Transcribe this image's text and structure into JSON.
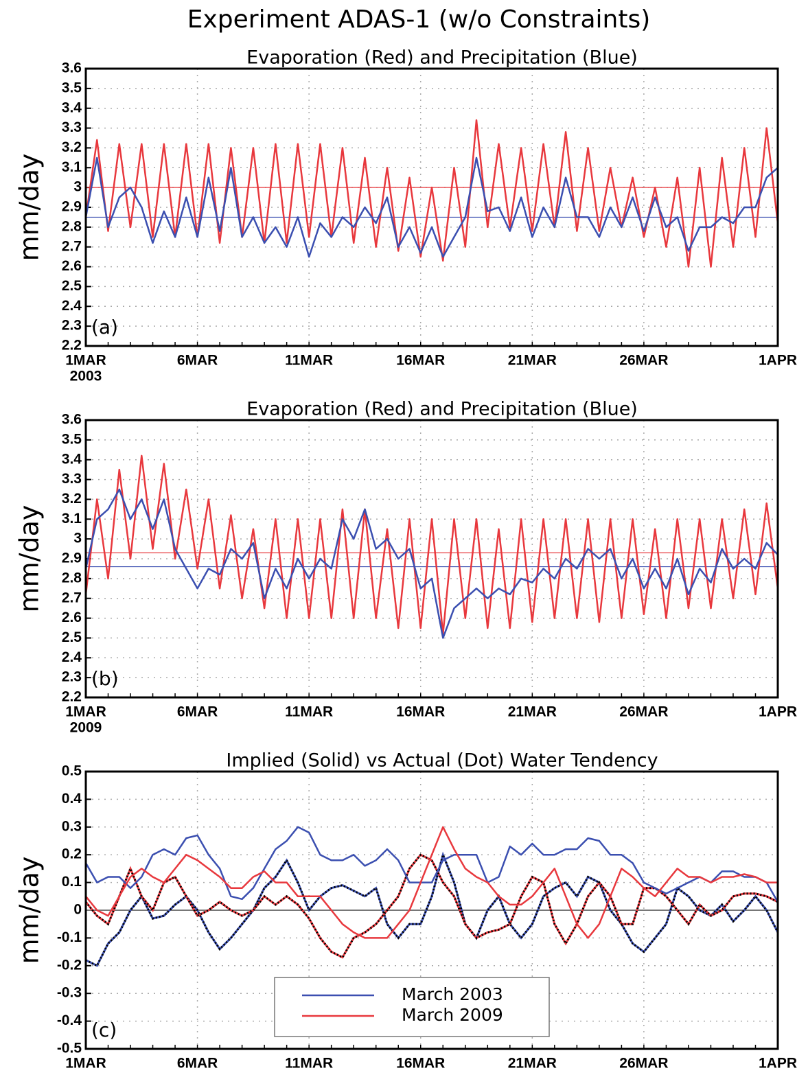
{
  "title": "Experiment ADAS-1 (w/o Constraints)",
  "chart_data": [
    {
      "type": "line",
      "title": "Evaporation (Red) and Precipitation (Blue)",
      "ylabel": "mm/day",
      "panel_label": "(a)",
      "year_label": "2003",
      "x": [
        0,
        0.5,
        1,
        1.5,
        2,
        2.5,
        3,
        3.5,
        4,
        4.5,
        5,
        5.5,
        6,
        6.5,
        7,
        7.5,
        8,
        8.5,
        9,
        9.5,
        10,
        10.5,
        11,
        11.5,
        12,
        12.5,
        13,
        13.5,
        14,
        14.5,
        15,
        15.5,
        16,
        16.5,
        17,
        17.5,
        18,
        18.5,
        19,
        19.5,
        20,
        20.5,
        21,
        21.5,
        22,
        22.5,
        23,
        23.5,
        24,
        24.5,
        25,
        25.5,
        26,
        26.5,
        27,
        27.5,
        28,
        28.5,
        29,
        29.5,
        30,
        30.5,
        31
      ],
      "xlim": [
        0,
        31
      ],
      "xticks": [
        {
          "value": 0,
          "label": "1MAR"
        },
        {
          "value": 5,
          "label": "6MAR"
        },
        {
          "value": 10,
          "label": "11MAR"
        },
        {
          "value": 15,
          "label": "16MAR"
        },
        {
          "value": 20,
          "label": "21MAR"
        },
        {
          "value": 25,
          "label": "26MAR"
        },
        {
          "value": 31,
          "label": "1APR"
        }
      ],
      "ylim": [
        2.2,
        3.6
      ],
      "yticks": [
        2.2,
        2.3,
        2.4,
        2.5,
        2.6,
        2.7,
        2.8,
        2.9,
        3,
        3.1,
        3.2,
        3.3,
        3.4,
        3.5,
        3.6
      ],
      "grid": true,
      "series": [
        {
          "color": "#e8383d",
          "reference": 3.0,
          "values": [
            2.85,
            3.24,
            2.78,
            3.22,
            2.8,
            3.22,
            2.75,
            3.22,
            2.75,
            3.22,
            2.75,
            3.22,
            2.72,
            3.2,
            2.75,
            3.2,
            2.72,
            3.22,
            2.72,
            3.22,
            2.75,
            3.22,
            2.75,
            3.2,
            2.72,
            3.15,
            2.7,
            3.1,
            2.68,
            3.05,
            2.65,
            3.0,
            2.63,
            3.1,
            2.7,
            3.34,
            2.8,
            3.22,
            2.8,
            3.2,
            2.78,
            3.22,
            2.8,
            3.28,
            2.78,
            3.2,
            2.78,
            3.1,
            2.8,
            3.05,
            2.75,
            3.0,
            2.7,
            3.05,
            2.6,
            3.1,
            2.6,
            3.15,
            2.7,
            3.2,
            2.75,
            3.3,
            2.82
          ]
        },
        {
          "color": "#3b4fb0",
          "reference": 2.85,
          "values": [
            2.85,
            3.15,
            2.8,
            2.95,
            3.0,
            2.9,
            2.72,
            2.88,
            2.75,
            2.95,
            2.75,
            3.05,
            2.78,
            3.1,
            2.75,
            2.85,
            2.72,
            2.8,
            2.7,
            2.85,
            2.65,
            2.82,
            2.75,
            2.85,
            2.8,
            2.9,
            2.82,
            2.95,
            2.7,
            2.8,
            2.67,
            2.8,
            2.65,
            2.75,
            2.85,
            3.15,
            2.88,
            2.9,
            2.78,
            2.95,
            2.75,
            2.9,
            2.8,
            3.05,
            2.85,
            2.85,
            2.75,
            2.9,
            2.8,
            2.95,
            2.78,
            2.95,
            2.8,
            2.85,
            2.68,
            2.8,
            2.8,
            2.85,
            2.82,
            2.9,
            2.9,
            3.05,
            3.1
          ]
        }
      ]
    },
    {
      "type": "line",
      "title": "Evaporation (Red) and Precipitation (Blue)",
      "ylabel": "mm/day",
      "panel_label": "(b)",
      "year_label": "2009",
      "x": [
        0,
        0.5,
        1,
        1.5,
        2,
        2.5,
        3,
        3.5,
        4,
        4.5,
        5,
        5.5,
        6,
        6.5,
        7,
        7.5,
        8,
        8.5,
        9,
        9.5,
        10,
        10.5,
        11,
        11.5,
        12,
        12.5,
        13,
        13.5,
        14,
        14.5,
        15,
        15.5,
        16,
        16.5,
        17,
        17.5,
        18,
        18.5,
        19,
        19.5,
        20,
        20.5,
        21,
        21.5,
        22,
        22.5,
        23,
        23.5,
        24,
        24.5,
        25,
        25.5,
        26,
        26.5,
        27,
        27.5,
        28,
        28.5,
        29,
        29.5,
        30,
        30.5,
        31
      ],
      "xlim": [
        0,
        31
      ],
      "xticks": [
        {
          "value": 0,
          "label": "1MAR"
        },
        {
          "value": 5,
          "label": "6MAR"
        },
        {
          "value": 10,
          "label": "11MAR"
        },
        {
          "value": 15,
          "label": "16MAR"
        },
        {
          "value": 20,
          "label": "21MAR"
        },
        {
          "value": 25,
          "label": "26MAR"
        },
        {
          "value": 31,
          "label": "1APR"
        }
      ],
      "ylim": [
        2.2,
        3.6
      ],
      "yticks": [
        2.2,
        2.3,
        2.4,
        2.5,
        2.6,
        2.7,
        2.8,
        2.9,
        3,
        3.1,
        3.2,
        3.3,
        3.4,
        3.5,
        3.6
      ],
      "grid": true,
      "series": [
        {
          "color": "#e8383d",
          "reference": 2.93,
          "values": [
            2.72,
            3.2,
            2.8,
            3.35,
            2.9,
            3.42,
            2.95,
            3.38,
            2.9,
            3.25,
            2.85,
            3.2,
            2.75,
            3.12,
            2.7,
            3.05,
            2.65,
            3.1,
            2.6,
            3.1,
            2.6,
            3.1,
            2.6,
            3.15,
            2.6,
            3.15,
            2.6,
            3.05,
            2.55,
            3.1,
            2.55,
            3.1,
            2.52,
            3.1,
            2.6,
            3.1,
            2.55,
            3.05,
            2.55,
            3.1,
            2.58,
            3.1,
            2.6,
            3.1,
            2.6,
            3.1,
            2.58,
            3.1,
            2.6,
            3.1,
            2.62,
            3.05,
            2.6,
            3.1,
            2.65,
            3.1,
            2.65,
            3.1,
            2.7,
            3.15,
            2.72,
            3.18,
            2.75
          ]
        },
        {
          "color": "#3b4fb0",
          "reference": 2.86,
          "values": [
            2.85,
            3.1,
            3.15,
            3.25,
            3.1,
            3.2,
            3.05,
            3.2,
            2.95,
            2.85,
            2.75,
            2.85,
            2.82,
            2.95,
            2.9,
            2.98,
            2.7,
            2.85,
            2.75,
            2.9,
            2.8,
            2.9,
            2.85,
            3.1,
            3.0,
            3.15,
            2.95,
            3.0,
            2.9,
            2.95,
            2.75,
            2.8,
            2.5,
            2.65,
            2.7,
            2.75,
            2.7,
            2.75,
            2.72,
            2.8,
            2.78,
            2.85,
            2.8,
            2.9,
            2.85,
            2.95,
            2.9,
            2.95,
            2.8,
            2.9,
            2.75,
            2.85,
            2.75,
            2.9,
            2.72,
            2.85,
            2.78,
            2.95,
            2.85,
            2.9,
            2.85,
            2.98,
            2.92
          ]
        }
      ]
    },
    {
      "type": "line",
      "title": "Implied (Solid) vs Actual (Dot) Water Tendency",
      "ylabel": "mm/day",
      "panel_label": "(c)",
      "legend": "bottom-center",
      "reference_line": 0,
      "x": [
        0,
        0.5,
        1,
        1.5,
        2,
        2.5,
        3,
        3.5,
        4,
        4.5,
        5,
        5.5,
        6,
        6.5,
        7,
        7.5,
        8,
        8.5,
        9,
        9.5,
        10,
        10.5,
        11,
        11.5,
        12,
        12.5,
        13,
        13.5,
        14,
        14.5,
        15,
        15.5,
        16,
        16.5,
        17,
        17.5,
        18,
        18.5,
        19,
        19.5,
        20,
        20.5,
        21,
        21.5,
        22,
        22.5,
        23,
        23.5,
        24,
        24.5,
        25,
        25.5,
        26,
        26.5,
        27,
        27.5,
        28,
        28.5,
        29,
        29.5,
        30,
        30.5,
        31
      ],
      "xlim": [
        0,
        31
      ],
      "xticks": [
        {
          "value": 0,
          "label": "1MAR"
        },
        {
          "value": 5,
          "label": "6MAR"
        },
        {
          "value": 10,
          "label": "11MAR"
        },
        {
          "value": 15,
          "label": "16MAR"
        },
        {
          "value": 20,
          "label": "21MAR"
        },
        {
          "value": 25,
          "label": "26MAR"
        },
        {
          "value": 31,
          "label": "1APR"
        }
      ],
      "ylim": [
        -0.5,
        0.5
      ],
      "yticks": [
        -0.5,
        -0.4,
        -0.3,
        -0.2,
        -0.1,
        0,
        0.1,
        0.2,
        0.3,
        0.4,
        0.5
      ],
      "grid": true,
      "series": [
        {
          "name": "March 2003",
          "color": "#3b4fb0",
          "values": [
            0.17,
            0.1,
            0.12,
            0.12,
            0.08,
            0.12,
            0.2,
            0.22,
            0.2,
            0.26,
            0.27,
            0.2,
            0.15,
            0.05,
            0.04,
            0.08,
            0.15,
            0.22,
            0.25,
            0.3,
            0.28,
            0.2,
            0.18,
            0.18,
            0.2,
            0.16,
            0.18,
            0.22,
            0.18,
            0.1,
            0.1,
            0.1,
            0.18,
            0.2,
            0.2,
            0.2,
            0.1,
            0.12,
            0.23,
            0.2,
            0.24,
            0.2,
            0.2,
            0.22,
            0.22,
            0.26,
            0.25,
            0.2,
            0.2,
            0.17,
            0.1,
            0.08,
            0.06,
            0.08,
            0.1,
            0.12,
            0.1,
            0.14,
            0.14,
            0.12,
            0.12,
            0.1,
            0.03
          ],
          "actual": [
            -0.18,
            -0.2,
            -0.12,
            -0.08,
            0.0,
            0.05,
            -0.03,
            -0.02,
            0.02,
            0.05,
            0.0,
            -0.08,
            -0.14,
            -0.1,
            -0.05,
            0.0,
            0.08,
            0.12,
            0.18,
            0.1,
            0.0,
            0.05,
            0.08,
            0.09,
            0.07,
            0.05,
            0.08,
            -0.05,
            -0.1,
            -0.05,
            -0.05,
            0.05,
            0.2,
            0.1,
            -0.05,
            -0.1,
            0.0,
            0.05,
            -0.05,
            -0.1,
            -0.05,
            0.05,
            0.08,
            0.1,
            0.05,
            0.12,
            0.1,
            0.0,
            -0.05,
            -0.12,
            -0.15,
            -0.1,
            -0.05,
            0.08,
            0.05,
            0.0,
            -0.02,
            0.02,
            -0.04,
            0.0,
            0.05,
            0.0,
            -0.08
          ]
        },
        {
          "name": "March 2009",
          "color": "#e8383d",
          "values": [
            0.05,
            0.0,
            -0.02,
            0.05,
            0.12,
            0.15,
            0.12,
            0.1,
            0.15,
            0.2,
            0.18,
            0.15,
            0.12,
            0.08,
            0.08,
            0.12,
            0.14,
            0.1,
            0.1,
            0.05,
            0.05,
            0.05,
            0.0,
            -0.05,
            -0.08,
            -0.1,
            -0.1,
            -0.1,
            -0.05,
            0.0,
            0.1,
            0.2,
            0.3,
            0.22,
            0.15,
            0.12,
            0.1,
            0.05,
            0.02,
            0.02,
            0.05,
            0.1,
            0.15,
            0.05,
            -0.05,
            -0.1,
            -0.05,
            0.05,
            0.15,
            0.12,
            0.08,
            0.05,
            0.1,
            0.15,
            0.12,
            0.12,
            0.1,
            0.12,
            0.12,
            0.13,
            0.12,
            0.1,
            0.1
          ],
          "actual": [
            0.03,
            -0.02,
            -0.05,
            0.05,
            0.15,
            0.05,
            0.0,
            0.1,
            0.12,
            0.05,
            -0.02,
            0.0,
            0.03,
            0.0,
            -0.02,
            0.0,
            0.05,
            0.02,
            0.05,
            0.02,
            -0.03,
            -0.1,
            -0.15,
            -0.17,
            -0.1,
            -0.08,
            -0.05,
            0.0,
            0.05,
            0.15,
            0.2,
            0.18,
            0.1,
            0.05,
            -0.05,
            -0.1,
            -0.08,
            -0.07,
            -0.05,
            0.05,
            0.12,
            0.1,
            -0.05,
            -0.12,
            -0.05,
            0.05,
            0.1,
            0.05,
            -0.05,
            -0.05,
            0.08,
            0.08,
            0.05,
            0.0,
            -0.05,
            0.02,
            -0.02,
            0.0,
            0.05,
            0.06,
            0.06,
            0.05,
            0.03
          ]
        }
      ]
    }
  ]
}
